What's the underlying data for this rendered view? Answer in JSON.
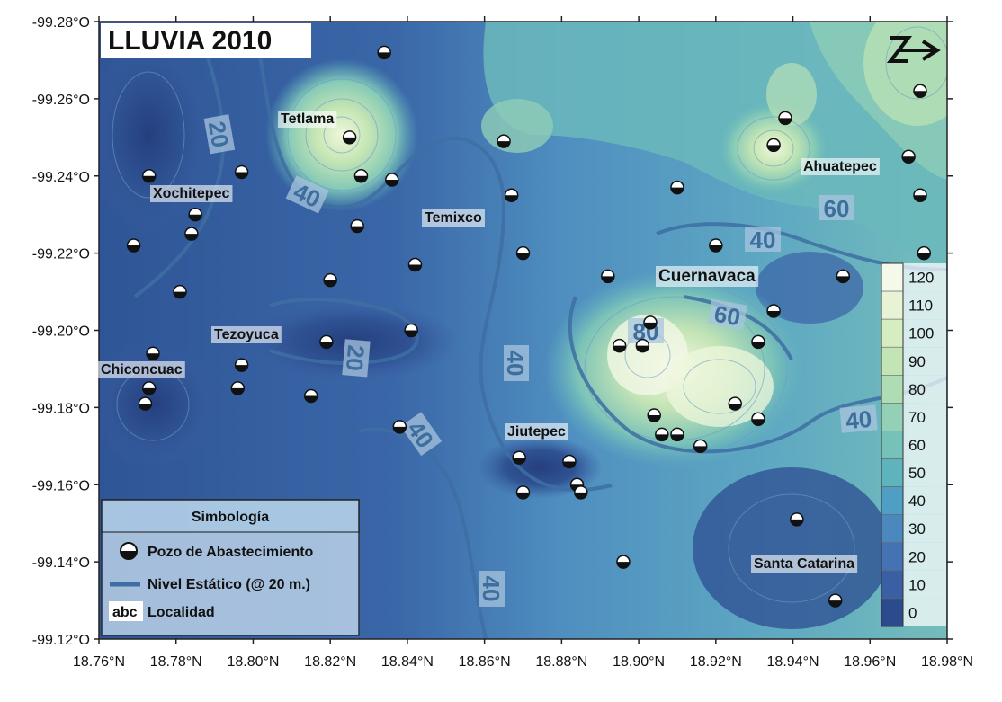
{
  "map": {
    "title": "LLUVIA 2010",
    "x_ticks": [
      "18.76°N",
      "18.78°N",
      "18.80°N",
      "18.82°N",
      "18.84°N",
      "18.86°N",
      "18.88°N",
      "18.90°N",
      "18.92°N",
      "18.94°N",
      "18.96°N",
      "18.98°N"
    ],
    "y_ticks": [
      "-99.28°O",
      "-99.26°O",
      "-99.24°O",
      "-99.22°O",
      "-99.20°O",
      "-99.18°O",
      "-99.16°O",
      "-99.14°O",
      "-99.12°O"
    ],
    "localities": [
      {
        "name": "Tetlama"
      },
      {
        "name": "Xochitepec"
      },
      {
        "name": "Temixco"
      },
      {
        "name": "Ahuatepec"
      },
      {
        "name": "Cuernavaca"
      },
      {
        "name": "Tezoyuca"
      },
      {
        "name": "Chiconcuac"
      },
      {
        "name": "Jiutepec"
      },
      {
        "name": "Santa Catarina"
      }
    ],
    "contour_labels": [
      "20",
      "40",
      "20",
      "40",
      "40",
      "80",
      "60",
      "40",
      "60",
      "40"
    ],
    "colorbar": {
      "labels": [
        "120",
        "110",
        "100",
        "90",
        "80",
        "70",
        "60",
        "50",
        "40",
        "30",
        "20",
        "10",
        "0"
      ],
      "colors": [
        "#f5f9ea",
        "#e8f3d6",
        "#d6edc2",
        "#c3e5b6",
        "#aedcb3",
        "#93d0b6",
        "#76c2b8",
        "#5fb3bd",
        "#4f9fc4",
        "#4b88be",
        "#4472b2",
        "#3a5fa3",
        "#2c4b8d"
      ]
    },
    "legend": {
      "title": "Simbología",
      "well_label": "Pozo de Abastecimiento",
      "static_label": "Nivel Estático (@ 20 m.)",
      "locality_symbol": "abc",
      "locality_label": "Localidad"
    },
    "wells": [
      {
        "lat": 18.834,
        "lon": -99.272
      },
      {
        "lat": 18.825,
        "lon": -99.25
      },
      {
        "lat": 18.828,
        "lon": -99.24
      },
      {
        "lat": 18.836,
        "lon": -99.239
      },
      {
        "lat": 18.797,
        "lon": -99.241
      },
      {
        "lat": 18.773,
        "lon": -99.24
      },
      {
        "lat": 18.785,
        "lon": -99.23
      },
      {
        "lat": 18.784,
        "lon": -99.225
      },
      {
        "lat": 18.769,
        "lon": -99.222
      },
      {
        "lat": 18.827,
        "lon": -99.227
      },
      {
        "lat": 18.865,
        "lon": -99.249
      },
      {
        "lat": 18.867,
        "lon": -99.235
      },
      {
        "lat": 18.82,
        "lon": -99.213
      },
      {
        "lat": 18.842,
        "lon": -99.217
      },
      {
        "lat": 18.781,
        "lon": -99.21
      },
      {
        "lat": 18.87,
        "lon": -99.22
      },
      {
        "lat": 18.91,
        "lon": -99.237
      },
      {
        "lat": 18.938,
        "lon": -99.255
      },
      {
        "lat": 18.935,
        "lon": -99.248
      },
      {
        "lat": 18.97,
        "lon": -99.245
      },
      {
        "lat": 18.973,
        "lon": -99.262
      },
      {
        "lat": 18.973,
        "lon": -99.235
      },
      {
        "lat": 18.974,
        "lon": -99.22
      },
      {
        "lat": 18.92,
        "lon": -99.222
      },
      {
        "lat": 18.892,
        "lon": -99.214
      },
      {
        "lat": 18.953,
        "lon": -99.214
      },
      {
        "lat": 18.935,
        "lon": -99.205
      },
      {
        "lat": 18.903,
        "lon": -99.202
      },
      {
        "lat": 18.895,
        "lon": -99.196
      },
      {
        "lat": 18.901,
        "lon": -99.196
      },
      {
        "lat": 18.931,
        "lon": -99.197
      },
      {
        "lat": 18.841,
        "lon": -99.2
      },
      {
        "lat": 18.819,
        "lon": -99.197
      },
      {
        "lat": 18.774,
        "lon": -99.194
      },
      {
        "lat": 18.797,
        "lon": -99.191
      },
      {
        "lat": 18.773,
        "lon": -99.185
      },
      {
        "lat": 18.772,
        "lon": -99.181
      },
      {
        "lat": 18.796,
        "lon": -99.185
      },
      {
        "lat": 18.815,
        "lon": -99.183
      },
      {
        "lat": 18.925,
        "lon": -99.181
      },
      {
        "lat": 18.904,
        "lon": -99.178
      },
      {
        "lat": 18.931,
        "lon": -99.177
      },
      {
        "lat": 18.838,
        "lon": -99.175
      },
      {
        "lat": 18.906,
        "lon": -99.173
      },
      {
        "lat": 18.91,
        "lon": -99.173
      },
      {
        "lat": 18.916,
        "lon": -99.17
      },
      {
        "lat": 18.869,
        "lon": -99.167
      },
      {
        "lat": 18.882,
        "lon": -99.166
      },
      {
        "lat": 18.884,
        "lon": -99.16
      },
      {
        "lat": 18.885,
        "lon": -99.158
      },
      {
        "lat": 18.87,
        "lon": -99.158
      },
      {
        "lat": 18.941,
        "lon": -99.151
      },
      {
        "lat": 18.896,
        "lon": -99.14
      },
      {
        "lat": 18.951,
        "lon": -99.13
      }
    ]
  }
}
